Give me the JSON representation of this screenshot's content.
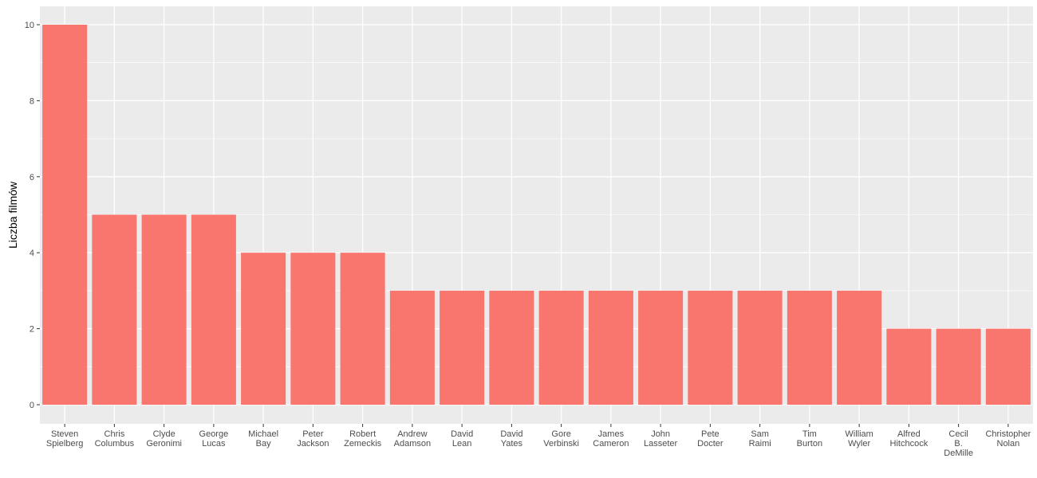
{
  "chart_data": {
    "type": "bar",
    "ylabel": "Liczba filmów",
    "xlabel": "",
    "title": "",
    "ylim": [
      0,
      10.45
    ],
    "yticks": [
      "0",
      "2",
      "4",
      "6",
      "8",
      "10"
    ],
    "grid": true,
    "legend": "none",
    "bar_color": "#F8766D",
    "panel_color": "#EBEBEB",
    "categories": [
      [
        "Steven",
        "Spielberg"
      ],
      [
        "Chris",
        "Columbus"
      ],
      [
        "Clyde",
        "Geronimi"
      ],
      [
        "George",
        "Lucas"
      ],
      [
        "Michael",
        "Bay"
      ],
      [
        "Peter",
        "Jackson"
      ],
      [
        "Robert",
        "Zemeckis"
      ],
      [
        "Andrew",
        "Adamson"
      ],
      [
        "David",
        "Lean"
      ],
      [
        "David",
        "Yates"
      ],
      [
        "Gore",
        "Verbinski"
      ],
      [
        "James",
        "Cameron"
      ],
      [
        "John",
        "Lasseter"
      ],
      [
        "Pete",
        "Docter"
      ],
      [
        "Sam",
        "Raimi"
      ],
      [
        "Tim",
        "Burton"
      ],
      [
        "William",
        "Wyler"
      ],
      [
        "Alfred",
        "Hitchcock"
      ],
      [
        "Cecil",
        "B.",
        "DeMille"
      ],
      [
        "Christopher",
        "Nolan"
      ]
    ],
    "values": [
      10,
      5,
      5,
      5,
      4,
      4,
      4,
      3,
      3,
      3,
      3,
      3,
      3,
      3,
      3,
      3,
      3,
      2,
      2,
      2
    ]
  }
}
